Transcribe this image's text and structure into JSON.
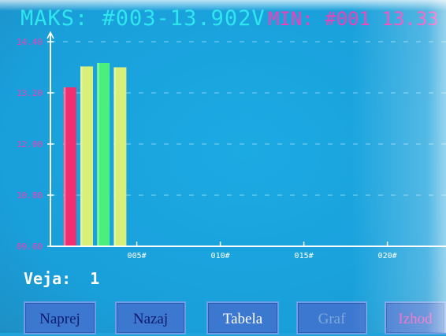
{
  "header": {
    "maks_text": "MAKS: #003-13.902V",
    "min_text": "MIN: #001 13.33",
    "maks_color": "#2ee6ee",
    "min_color": "#f03fb8"
  },
  "chart_data": {
    "type": "bar",
    "ylim": [
      9.6,
      14.4
    ],
    "y_ticks": [
      "14.40",
      "13.20",
      "12.00",
      "10.80",
      "09.60"
    ],
    "x_ticks": [
      "005#",
      "010#",
      "015#",
      "020#"
    ],
    "grid": true,
    "bars": [
      {
        "cell": 1,
        "value": 13.33,
        "color": "#f0306e"
      },
      {
        "cell": 2,
        "value": 13.82,
        "color": "#d8f07a"
      },
      {
        "cell": 3,
        "value": 13.902,
        "color": "#4af07c"
      },
      {
        "cell": 4,
        "value": 13.8,
        "color": "#d8f07a"
      }
    ]
  },
  "footer": {
    "veja_label": "Veja:",
    "veja_value": "1"
  },
  "buttons": [
    {
      "label": "Naprej",
      "color": "#0d1a6e"
    },
    {
      "label": "Nazaj",
      "color": "#0d1a6e"
    },
    {
      "label": "Tabela",
      "color": "#ffffff"
    },
    {
      "label": "Graf",
      "color": "#7fa8d8"
    },
    {
      "label": "Izhod",
      "color": "#f05ac0"
    }
  ]
}
